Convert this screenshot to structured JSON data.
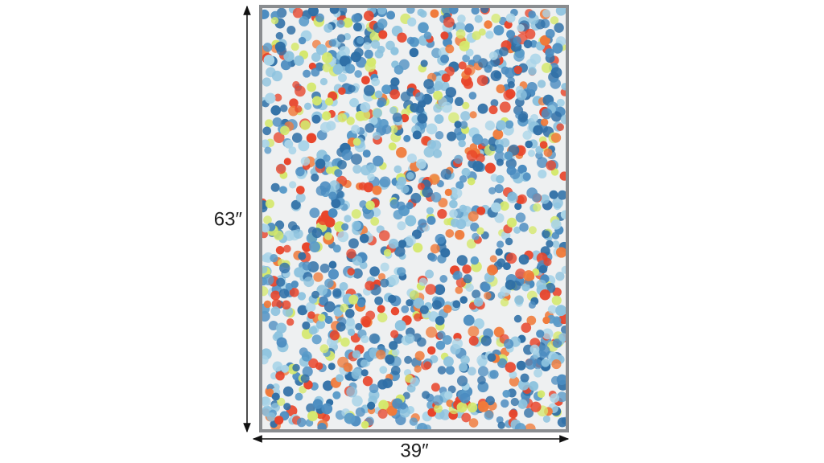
{
  "dimensions": {
    "height": "63″",
    "width": "39″"
  }
}
